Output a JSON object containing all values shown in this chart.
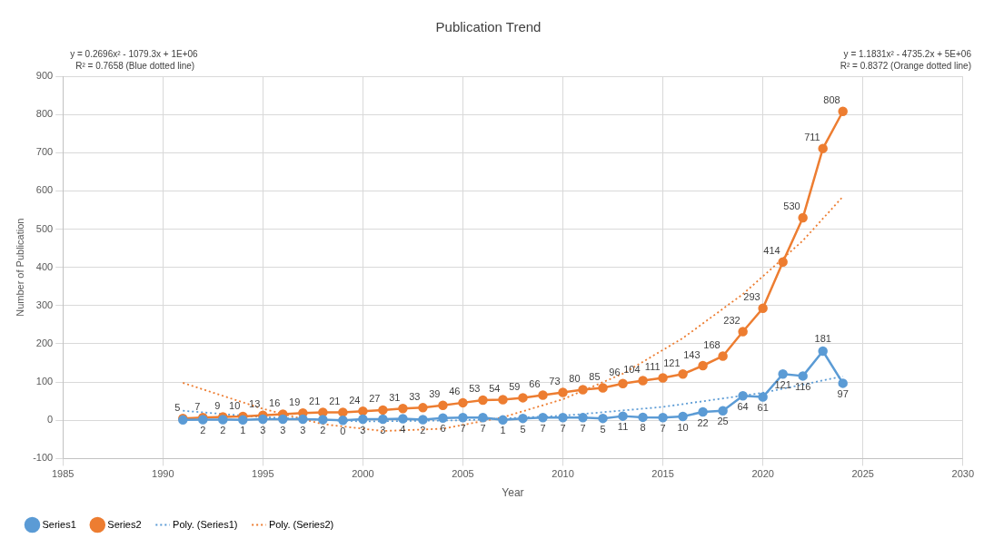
{
  "chart_data": {
    "type": "line",
    "title": "Publication Trend",
    "xlabel": "Year",
    "ylabel": "Number of Publication",
    "annotations": [
      "y = 0.2696x² - 1079.3x + 1E+06\nR² = 0.7658 (Blue dotted line)",
      "y = 1.1831x² - 4735.2x + 5E+06\nR² = 0.8372 (Orange dotted line)"
    ],
    "x": [
      1991,
      1992,
      1993,
      1994,
      1995,
      1996,
      1997,
      1998,
      1999,
      2000,
      2001,
      2002,
      2003,
      2004,
      2005,
      2006,
      2007,
      2008,
      2009,
      2010,
      2011,
      2012,
      2013,
      2014,
      2015,
      2016,
      2017,
      2018,
      2019,
      2020,
      2021,
      2022,
      2023,
      2024
    ],
    "series": [
      {
        "name": "Series1",
        "color": "#5b9bd5",
        "marker": "circle",
        "values": [
          1,
          2,
          2,
          1,
          3,
          3,
          3,
          2,
          0,
          3,
          3,
          4,
          2,
          6,
          7,
          7,
          1,
          5,
          7,
          7,
          7,
          5,
          11,
          8,
          7,
          10,
          22,
          25,
          64,
          61,
          121,
          116,
          181,
          97
        ],
        "value_labels": [
          null,
          "2",
          "2",
          "1",
          "3",
          "3",
          "3",
          "2",
          "0",
          "3",
          "3",
          "4",
          "2",
          "6",
          "7",
          "7",
          "1",
          "5",
          "7",
          "7",
          "7",
          "5",
          "11",
          "8",
          "7",
          "10",
          "22",
          "25",
          "64",
          "61",
          "121",
          "116",
          "181",
          "97"
        ]
      },
      {
        "name": "Series2",
        "color": "#ed7d31",
        "marker": "circle",
        "values": [
          5,
          7,
          9,
          10,
          13,
          16,
          19,
          21,
          21,
          24,
          27,
          31,
          33,
          39,
          46,
          53,
          54,
          59,
          66,
          73,
          80,
          85,
          96,
          104,
          111,
          121,
          143,
          168,
          232,
          293,
          414,
          530,
          711,
          808
        ],
        "value_labels": [
          "5",
          "7",
          "9",
          "10",
          "13",
          "16",
          "19",
          "21",
          "21",
          "24",
          "27",
          "31",
          "33",
          "39",
          "46",
          "53",
          "54",
          "59",
          "66",
          "73",
          "80",
          "85",
          "96",
          "104",
          "111",
          "121",
          "143",
          "168",
          "232",
          "293",
          "414",
          "530",
          "711",
          "808"
        ]
      },
      {
        "name": "Poly. (Series1)",
        "type": "line",
        "color": "#5b9bd5",
        "marker": "none",
        "line_style": "dotted",
        "x": [
          1991,
          1995,
          2000,
          2005,
          2010,
          2015,
          2020,
          2024
        ],
        "values": [
          25,
          8,
          -3,
          0,
          12,
          35,
          72,
          115
        ]
      },
      {
        "name": "Poly. (Series2)",
        "type": "line",
        "color": "#ed7d31",
        "marker": "none",
        "line_style": "dotted",
        "x": [
          1991,
          1995,
          1998,
          2001,
          2004,
          2007,
          2010,
          2013,
          2016,
          2019,
          2022,
          2024
        ],
        "values": [
          98,
          30,
          -10,
          -28,
          -22,
          8,
          55,
          122,
          215,
          330,
          470,
          585
        ]
      }
    ],
    "xlim": [
      1985,
      2030
    ],
    "xticks": [
      1985,
      1990,
      1995,
      2000,
      2005,
      2010,
      2015,
      2020,
      2025,
      2030
    ],
    "ylim": [
      -100,
      900
    ],
    "yticks": [
      -100,
      0,
      100,
      200,
      300,
      400,
      500,
      600,
      700,
      800,
      900
    ],
    "grid": true,
    "legend": "bottom left"
  }
}
